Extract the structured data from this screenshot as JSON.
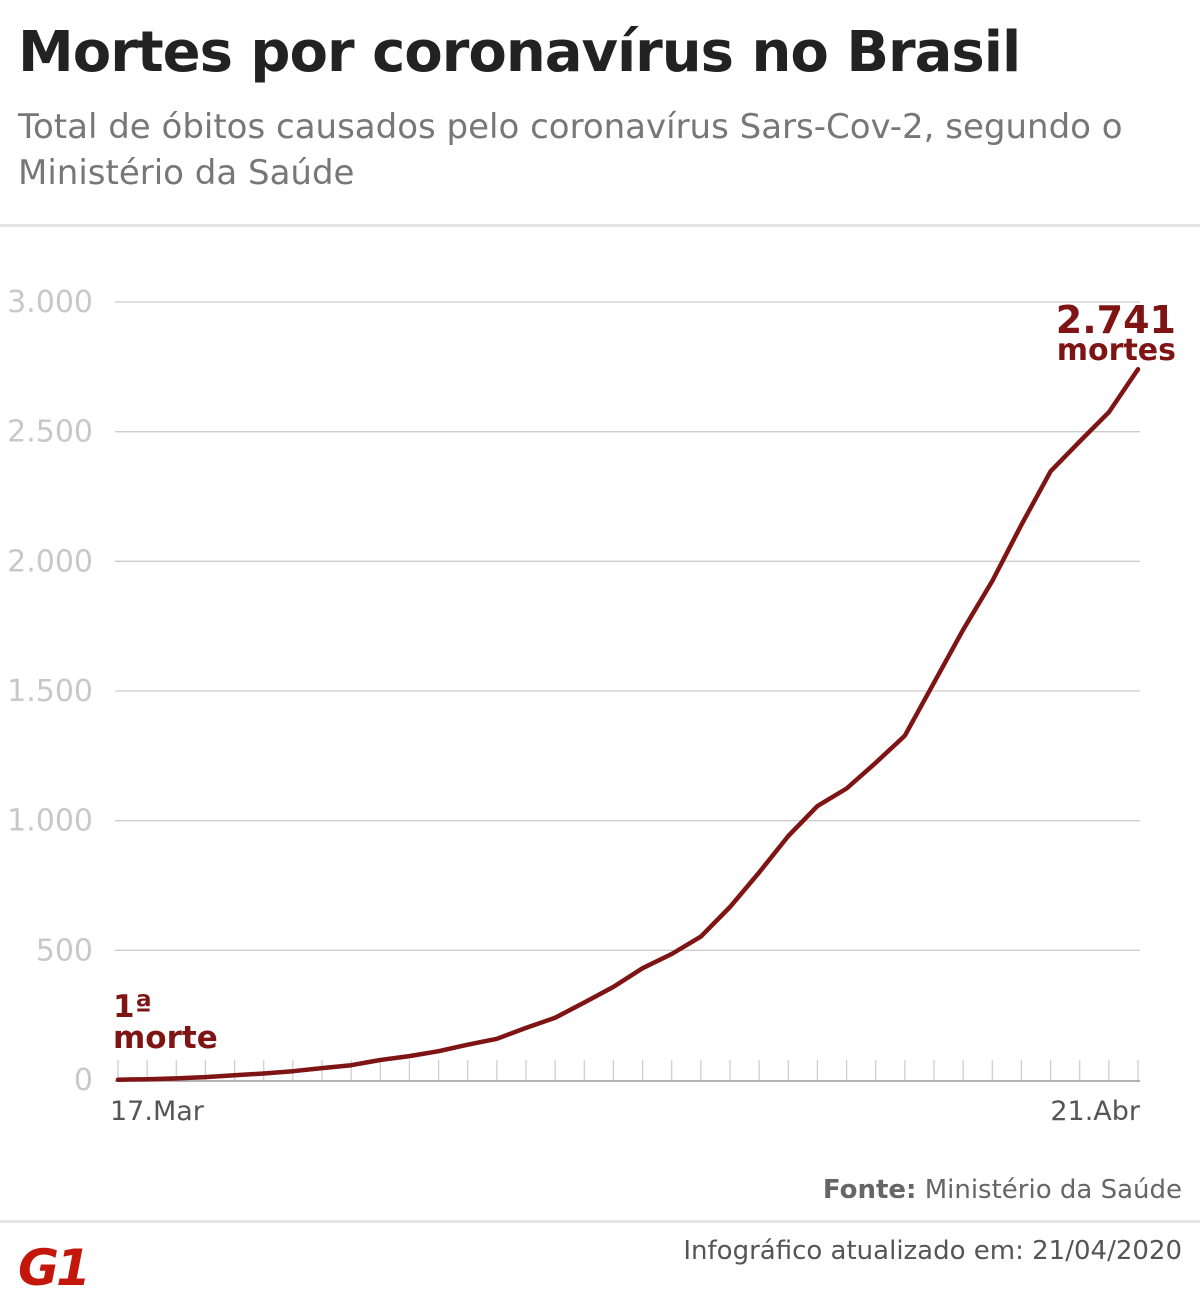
{
  "header": {
    "title": "Mortes por coronavírus no Brasil",
    "subtitle": "Total de óbitos causados pelo coronavírus Sars-Cov-2, segundo o Ministério da Saúde"
  },
  "footer": {
    "source_label": "Fonte:",
    "source_value": "Ministério da Saúde",
    "updated": "Infográfico atualizado em: 21/04/2020",
    "logo": "G1"
  },
  "colors": {
    "line": "#7f1414",
    "grid": "#cccccc",
    "tick_label": "#c8c8c8",
    "logo": "#c4170c"
  },
  "chart_data": {
    "type": "line",
    "title": "Mortes por coronavírus no Brasil",
    "ylim": [
      0,
      3000
    ],
    "yticks": [
      0,
      500,
      1000,
      1500,
      2000,
      2500,
      3000
    ],
    "ytick_labels": [
      "0",
      "500",
      "1.000",
      "1.500",
      "2.000",
      "2.500",
      "3.000"
    ],
    "x_tick_labels": [
      "17.Mar",
      "21.Abr"
    ],
    "x": [
      "17.Mar",
      "18.Mar",
      "19.Mar",
      "20.Mar",
      "21.Mar",
      "22.Mar",
      "23.Mar",
      "24.Mar",
      "25.Mar",
      "26.Mar",
      "27.Mar",
      "28.Mar",
      "29.Mar",
      "30.Mar",
      "31.Mar",
      "01.Abr",
      "02.Abr",
      "03.Abr",
      "04.Abr",
      "05.Abr",
      "06.Abr",
      "07.Abr",
      "08.Abr",
      "09.Abr",
      "10.Abr",
      "11.Abr",
      "12.Abr",
      "13.Abr",
      "14.Abr",
      "15.Abr",
      "16.Abr",
      "17.Abr",
      "18.Abr",
      "19.Abr",
      "20.Abr",
      "21.Abr"
    ],
    "series": [
      {
        "values": [
          1,
          3,
          6,
          11,
          18,
          25,
          34,
          46,
          57,
          77,
          92,
          111,
          136,
          159,
          201,
          240,
          299,
          359,
          431,
          486,
          553,
          667,
          800,
          941,
          1056,
          1124,
          1223,
          1328,
          1532,
          1736,
          1924,
          2141,
          2347,
          2462,
          2575,
          2741
        ]
      }
    ],
    "annotations": {
      "first": {
        "line1": "1ª",
        "line2": "morte"
      },
      "last": {
        "value": "2.741",
        "label": "mortes"
      }
    },
    "grid": true,
    "legend": "none"
  }
}
